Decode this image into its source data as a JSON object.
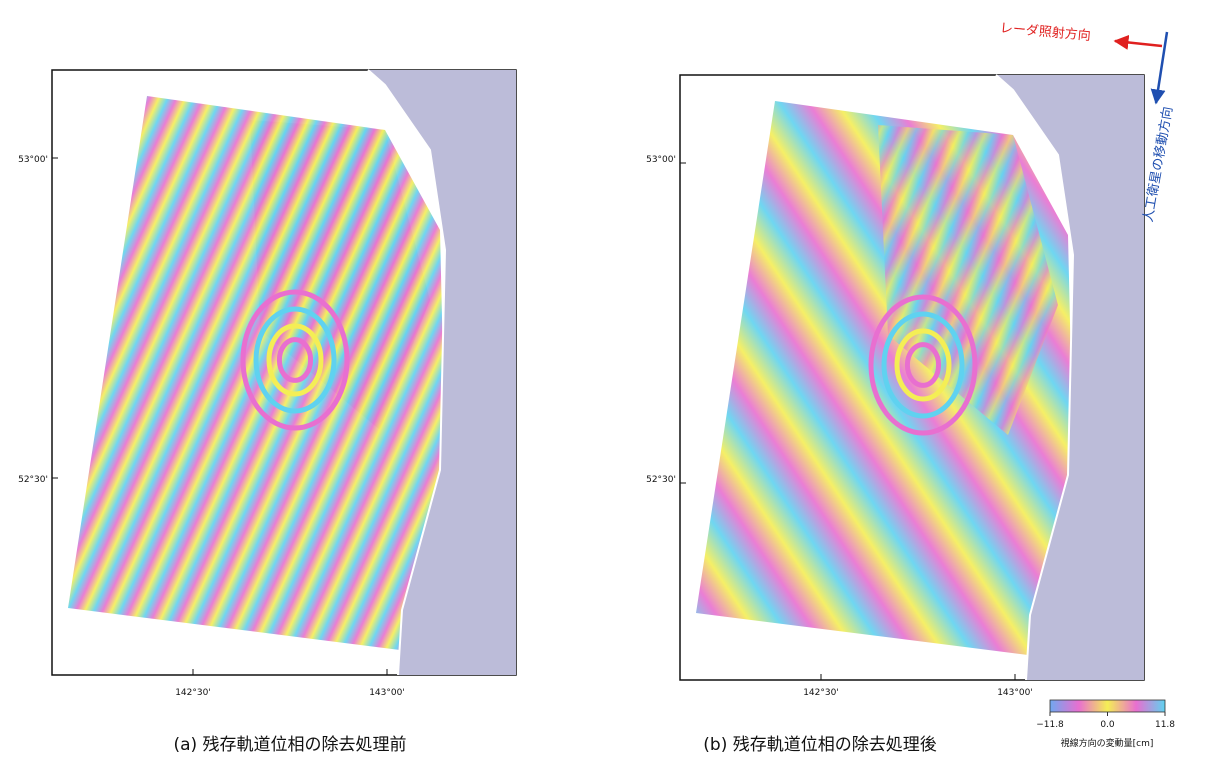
{
  "panels": [
    {
      "caption": "(a)  残存軌道位相の除去処理前",
      "lat_labels": [
        "53°00'",
        "52°30'"
      ],
      "lon_labels": [
        "142°30'",
        "143°00'"
      ]
    },
    {
      "caption": "(b)  残存軌道位相の除去処理後",
      "lat_labels": [
        "53°00'",
        "52°30'"
      ],
      "lon_labels": [
        "142°30'",
        "143°00'"
      ]
    }
  ],
  "colorbar": {
    "ticks": [
      {
        "value": -11.8,
        "label": "−11.8"
      },
      {
        "value": 0,
        "label": "0.0"
      },
      {
        "value": 11.8,
        "label": "11.8"
      }
    ],
    "label": "視線方向の変動量[cm]"
  },
  "arrows": {
    "radar": "レーダ照射方向",
    "satellite": "人工衛星の移動方向"
  }
}
